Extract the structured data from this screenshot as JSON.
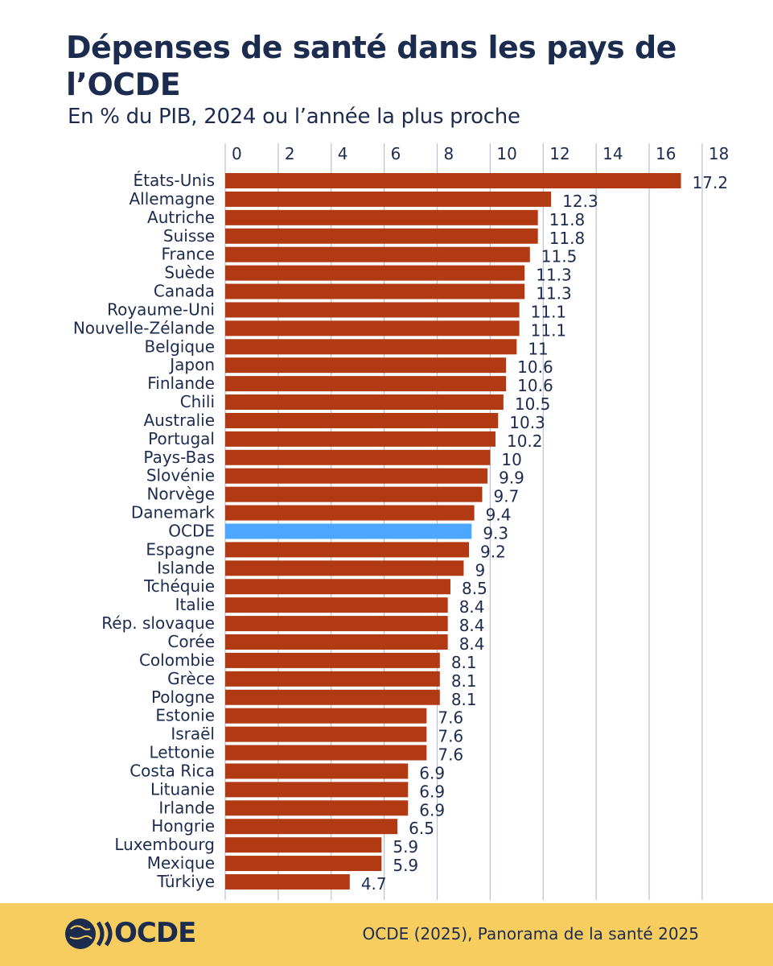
{
  "header": {
    "title": "Dépenses de santé dans les pays de l’OCDE",
    "subtitle": "En % du PIB, 2024 ou l’année la plus proche"
  },
  "footer": {
    "logo_text": "OCDE",
    "source": "OCDE (2025), Panorama de la santé 2025"
  },
  "colors": {
    "bar": "#b13a12",
    "highlight": "#4da6ff",
    "title": "#1c2c4f",
    "footer_bg": "#f7cd5f",
    "grid": "#b8c0d2"
  },
  "chart_data": {
    "type": "bar",
    "orientation": "horizontal",
    "axis_position": "top",
    "xlim": [
      0,
      18
    ],
    "xticks": [
      0,
      2,
      4,
      6,
      8,
      10,
      12,
      14,
      16,
      18
    ],
    "grid": true,
    "highlight": "OCDE",
    "categories": [
      "États-Unis",
      "Allemagne",
      "Autriche",
      "Suisse",
      "France",
      "Suède",
      "Canada",
      "Royaume-Uni",
      "Nouvelle-Zélande",
      "Belgique",
      "Japon",
      "Finlande",
      "Chili",
      "Australie",
      "Portugal",
      "Pays-Bas",
      "Slovénie",
      "Norvège",
      "Danemark",
      "OCDE",
      "Espagne",
      "Islande",
      "Tchéquie",
      "Italie",
      "Rép. slovaque",
      "Corée",
      "Colombie",
      "Grèce",
      "Pologne",
      "Estonie",
      "Israël",
      "Lettonie",
      "Costa Rica",
      "Lituanie",
      "Irlande",
      "Hongrie",
      "Luxembourg",
      "Mexique",
      "Türkiye"
    ],
    "values": [
      17.2,
      12.3,
      11.8,
      11.8,
      11.5,
      11.3,
      11.3,
      11.1,
      11.1,
      11,
      10.6,
      10.6,
      10.5,
      10.3,
      10.2,
      10,
      9.9,
      9.7,
      9.4,
      9.3,
      9.2,
      9,
      8.5,
      8.4,
      8.4,
      8.4,
      8.1,
      8.1,
      8.1,
      7.6,
      7.6,
      7.6,
      6.9,
      6.9,
      6.9,
      6.5,
      5.9,
      5.9,
      4.7
    ]
  }
}
